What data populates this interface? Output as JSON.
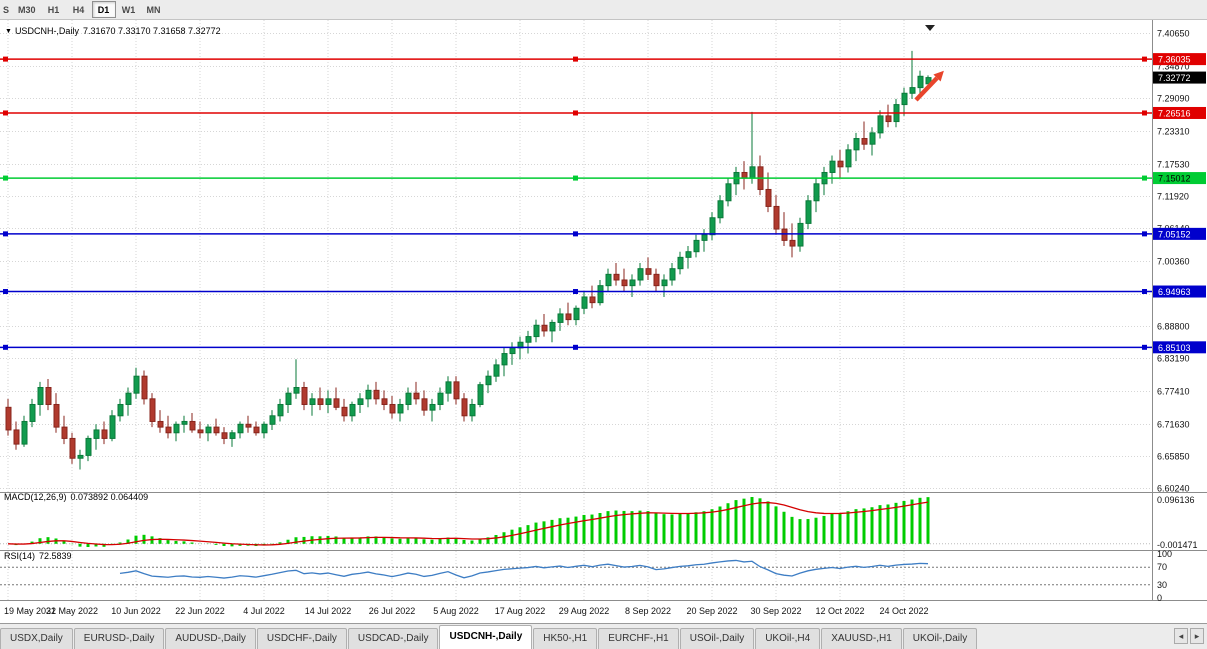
{
  "toolbar": {
    "partial_left_label": "S",
    "timeframes": [
      "M30",
      "H1",
      "H4",
      "D1",
      "W1",
      "MN"
    ],
    "active_timeframe": "D1"
  },
  "icons": {
    "chart_menu": "▼",
    "tab_scroll_left": "◂",
    "tab_scroll_right": "▸"
  },
  "chart_header": {
    "symbol_label": "USDCNH-,Daily",
    "ohlc_text": "7.31670 7.33170 7.31658 7.32772"
  },
  "price_axis": {
    "ticks": [
      "7.40650",
      "7.34870",
      "7.29090",
      "7.23310",
      "7.17530",
      "7.11920",
      "7.06140",
      "7.00360",
      "6.94580",
      "6.88800",
      "6.83190",
      "6.77410",
      "6.71630",
      "6.65850",
      "6.60240"
    ],
    "current_price": "7.32772",
    "current_price_bg": "#000000",
    "current_price_fg": "#ffffff"
  },
  "hlines": [
    {
      "price": 7.36035,
      "label": "7.36035",
      "color": "#e00000",
      "badge_bg": "#e00000",
      "badge_fg": "#ffffff"
    },
    {
      "price": 7.26516,
      "label": "7.26516",
      "color": "#e00000",
      "badge_bg": "#e00000",
      "badge_fg": "#ffffff"
    },
    {
      "price": 7.15012,
      "label": "7.15012",
      "color": "#00cc33",
      "badge_bg": "#00cc33",
      "badge_fg": "#000000"
    },
    {
      "price": 7.05152,
      "label": "7.05152",
      "color": "#0000cc",
      "badge_bg": "#0000cc",
      "badge_fg": "#ffffff"
    },
    {
      "price": 6.94963,
      "label": "6.94963",
      "color": "#0000cc",
      "badge_bg": "#0000cc",
      "badge_fg": "#ffffff"
    },
    {
      "price": 6.85103,
      "label": "6.85103",
      "color": "#0000cc",
      "badge_bg": "#0000cc",
      "badge_fg": "#ffffff"
    }
  ],
  "macd": {
    "label": "MACD(12,26,9)",
    "values": "0.073892 0.064409",
    "axis_top": "0.096136",
    "axis_bottom": "-0.001471"
  },
  "rsi": {
    "label": "RSI(14)",
    "value": "72.5839",
    "axis": [
      "100",
      "70",
      "30",
      "0"
    ],
    "levels": [
      70,
      30
    ]
  },
  "tabs": {
    "items": [
      "USDX,Daily",
      "EURUSD-,Daily",
      "AUDUSD-,Daily",
      "USDCHF-,Daily",
      "USDCAD-,Daily",
      "USDCNH-,Daily",
      "HK50-,H1",
      "EURCHF-,H1",
      "USOil-,Daily",
      "UKOil-,H4",
      "XAUUSD-,H1",
      "UKOil-,Daily"
    ],
    "active": "USDCNH-,Daily"
  },
  "colors": {
    "candle_up": "#119b4e",
    "candle_up_stroke": "#0a7a3a",
    "candle_down": "#b03a2e",
    "candle_down_stroke": "#88251c",
    "grid": "#d6d6d6",
    "macd_histogram": "#00cc00",
    "macd_signal": "#d40000",
    "rsi_line": "#3d7dc4",
    "separator": "#8c8c8c"
  },
  "annotations": {
    "trend_arrow": {
      "color": "#e8452c",
      "direction": "up-right"
    },
    "last_bar_marker": {
      "color": "#222222"
    }
  },
  "chart_data": {
    "type": "candlestick",
    "title": "USDCNH-,Daily",
    "ylim": [
      6.6024,
      7.4065
    ],
    "bars_per_tick": 8,
    "x_tick_labels": [
      "19 May 2022",
      "31 May 2022",
      "10 Jun 2022",
      "22 Jun 2022",
      "4 Jul 2022",
      "14 Jul 2022",
      "26 Jul 2022",
      "5 Aug 2022",
      "17 Aug 2022",
      "29 Aug 2022",
      "8 Sep 2022",
      "20 Sep 2022",
      "30 Sep 2022",
      "12 Oct 2022",
      "24 Oct 2022"
    ],
    "horizontal_levels": [
      7.36035,
      7.26516,
      7.15012,
      7.05152,
      6.94963,
      6.85103
    ],
    "indicators": [
      {
        "name": "MACD",
        "params": [
          12,
          26,
          9
        ],
        "current_values": [
          0.073892,
          0.064409
        ]
      },
      {
        "name": "RSI",
        "params": [
          14
        ],
        "current_value": 72.5839
      }
    ],
    "candles": [
      [
        6.745,
        6.76,
        6.695,
        6.705
      ],
      [
        6.705,
        6.72,
        6.67,
        6.68
      ],
      [
        6.68,
        6.73,
        6.675,
        6.72
      ],
      [
        6.72,
        6.76,
        6.71,
        6.75
      ],
      [
        6.75,
        6.79,
        6.73,
        6.78
      ],
      [
        6.78,
        6.795,
        6.74,
        6.75
      ],
      [
        6.75,
        6.77,
        6.7,
        6.71
      ],
      [
        6.71,
        6.73,
        6.68,
        6.69
      ],
      [
        6.69,
        6.7,
        6.645,
        6.655
      ],
      [
        6.655,
        6.67,
        6.635,
        6.66
      ],
      [
        6.66,
        6.695,
        6.65,
        6.69
      ],
      [
        6.69,
        6.715,
        6.67,
        6.705
      ],
      [
        6.705,
        6.72,
        6.68,
        6.69
      ],
      [
        6.69,
        6.74,
        6.685,
        6.73
      ],
      [
        6.73,
        6.76,
        6.72,
        6.75
      ],
      [
        6.75,
        6.78,
        6.73,
        6.77
      ],
      [
        6.77,
        6.815,
        6.76,
        6.8
      ],
      [
        6.8,
        6.81,
        6.75,
        6.76
      ],
      [
        6.76,
        6.77,
        6.71,
        6.72
      ],
      [
        6.72,
        6.74,
        6.7,
        6.71
      ],
      [
        6.71,
        6.73,
        6.69,
        6.7
      ],
      [
        6.7,
        6.72,
        6.685,
        6.715
      ],
      [
        6.715,
        6.73,
        6.7,
        6.72
      ],
      [
        6.72,
        6.735,
        6.7,
        6.705
      ],
      [
        6.705,
        6.72,
        6.69,
        6.7
      ],
      [
        6.7,
        6.715,
        6.685,
        6.71
      ],
      [
        6.71,
        6.725,
        6.695,
        6.7
      ],
      [
        6.7,
        6.71,
        6.68,
        6.69
      ],
      [
        6.69,
        6.705,
        6.675,
        6.7
      ],
      [
        6.7,
        6.72,
        6.69,
        6.715
      ],
      [
        6.715,
        6.73,
        6.7,
        6.71
      ],
      [
        6.71,
        6.72,
        6.695,
        6.7
      ],
      [
        6.7,
        6.72,
        6.69,
        6.715
      ],
      [
        6.715,
        6.74,
        6.705,
        6.73
      ],
      [
        6.73,
        6.76,
        6.72,
        6.75
      ],
      [
        6.75,
        6.78,
        6.735,
        6.77
      ],
      [
        6.77,
        6.83,
        6.76,
        6.78
      ],
      [
        6.78,
        6.79,
        6.74,
        6.75
      ],
      [
        6.75,
        6.77,
        6.73,
        6.76
      ],
      [
        6.76,
        6.78,
        6.74,
        6.75
      ],
      [
        6.75,
        6.775,
        6.735,
        6.76
      ],
      [
        6.76,
        6.78,
        6.74,
        6.745
      ],
      [
        6.745,
        6.76,
        6.72,
        6.73
      ],
      [
        6.73,
        6.755,
        6.72,
        6.75
      ],
      [
        6.75,
        6.77,
        6.735,
        6.76
      ],
      [
        6.76,
        6.785,
        6.745,
        6.775
      ],
      [
        6.775,
        6.79,
        6.75,
        6.76
      ],
      [
        6.76,
        6.775,
        6.74,
        6.75
      ],
      [
        6.75,
        6.765,
        6.725,
        6.735
      ],
      [
        6.735,
        6.76,
        6.72,
        6.75
      ],
      [
        6.75,
        6.78,
        6.74,
        6.77
      ],
      [
        6.77,
        6.79,
        6.75,
        6.76
      ],
      [
        6.76,
        6.775,
        6.73,
        6.74
      ],
      [
        6.74,
        6.76,
        6.72,
        6.75
      ],
      [
        6.75,
        6.78,
        6.74,
        6.77
      ],
      [
        6.77,
        6.8,
        6.755,
        6.79
      ],
      [
        6.79,
        6.8,
        6.75,
        6.76
      ],
      [
        6.76,
        6.77,
        6.72,
        6.73
      ],
      [
        6.73,
        6.76,
        6.72,
        6.75
      ],
      [
        6.75,
        6.79,
        6.745,
        6.785
      ],
      [
        6.785,
        6.81,
        6.77,
        6.8
      ],
      [
        6.8,
        6.83,
        6.79,
        6.82
      ],
      [
        6.82,
        6.85,
        6.8,
        6.84
      ],
      [
        6.84,
        6.86,
        6.82,
        6.85
      ],
      [
        6.85,
        6.87,
        6.83,
        6.86
      ],
      [
        6.86,
        6.88,
        6.84,
        6.87
      ],
      [
        6.87,
        6.9,
        6.86,
        6.89
      ],
      [
        6.89,
        6.91,
        6.87,
        6.88
      ],
      [
        6.88,
        6.9,
        6.86,
        6.895
      ],
      [
        6.895,
        6.92,
        6.88,
        6.91
      ],
      [
        6.91,
        6.93,
        6.89,
        6.9
      ],
      [
        6.9,
        6.925,
        6.89,
        6.92
      ],
      [
        6.92,
        6.95,
        6.91,
        6.94
      ],
      [
        6.94,
        6.96,
        6.92,
        6.93
      ],
      [
        6.93,
        6.97,
        6.925,
        6.96
      ],
      [
        6.96,
        6.99,
        6.95,
        6.98
      ],
      [
        6.98,
        7.0,
        6.96,
        6.97
      ],
      [
        6.97,
        6.99,
        6.95,
        6.96
      ],
      [
        6.96,
        6.98,
        6.94,
        6.97
      ],
      [
        6.97,
        7.0,
        6.96,
        6.99
      ],
      [
        6.99,
        7.01,
        6.97,
        6.98
      ],
      [
        6.98,
        6.99,
        6.95,
        6.96
      ],
      [
        6.96,
        6.98,
        6.94,
        6.97
      ],
      [
        6.97,
        7.0,
        6.96,
        6.99
      ],
      [
        6.99,
        7.02,
        6.98,
        7.01
      ],
      [
        7.01,
        7.03,
        6.99,
        7.02
      ],
      [
        7.02,
        7.05,
        7.01,
        7.04
      ],
      [
        7.04,
        7.06,
        7.02,
        7.05
      ],
      [
        7.05,
        7.09,
        7.04,
        7.08
      ],
      [
        7.08,
        7.12,
        7.07,
        7.11
      ],
      [
        7.11,
        7.15,
        7.1,
        7.14
      ],
      [
        7.14,
        7.17,
        7.12,
        7.16
      ],
      [
        7.16,
        7.18,
        7.13,
        7.15
      ],
      [
        7.15,
        7.267,
        7.14,
        7.17
      ],
      [
        7.17,
        7.19,
        7.12,
        7.13
      ],
      [
        7.13,
        7.16,
        7.09,
        7.1
      ],
      [
        7.1,
        7.12,
        7.05,
        7.06
      ],
      [
        7.06,
        7.09,
        7.03,
        7.04
      ],
      [
        7.04,
        7.07,
        7.01,
        7.03
      ],
      [
        7.03,
        7.08,
        7.02,
        7.07
      ],
      [
        7.07,
        7.12,
        7.06,
        7.11
      ],
      [
        7.11,
        7.15,
        7.09,
        7.14
      ],
      [
        7.14,
        7.17,
        7.12,
        7.16
      ],
      [
        7.16,
        7.19,
        7.14,
        7.18
      ],
      [
        7.18,
        7.2,
        7.15,
        7.17
      ],
      [
        7.17,
        7.21,
        7.16,
        7.2
      ],
      [
        7.2,
        7.23,
        7.18,
        7.22
      ],
      [
        7.22,
        7.25,
        7.2,
        7.21
      ],
      [
        7.21,
        7.24,
        7.19,
        7.23
      ],
      [
        7.23,
        7.27,
        7.22,
        7.26
      ],
      [
        7.26,
        7.28,
        7.24,
        7.25
      ],
      [
        7.25,
        7.29,
        7.24,
        7.28
      ],
      [
        7.28,
        7.31,
        7.26,
        7.3
      ],
      [
        7.3,
        7.375,
        7.29,
        7.31
      ],
      [
        7.31,
        7.34,
        7.3,
        7.33
      ],
      [
        7.3167,
        7.3317,
        7.3166,
        7.3277
      ]
    ]
  }
}
